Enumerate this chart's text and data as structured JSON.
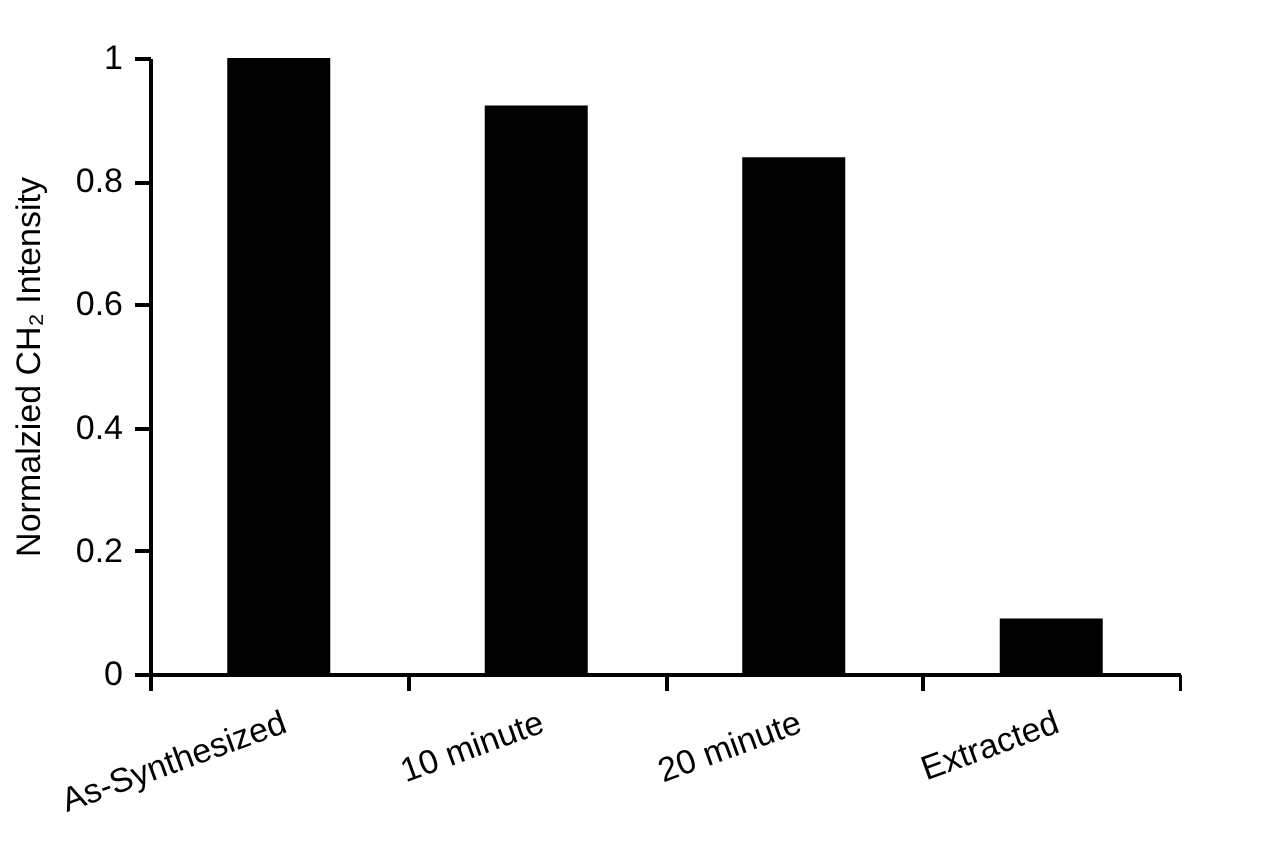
{
  "chart_data": {
    "type": "bar",
    "ylabel": "Normalzied CH₂ Intensity",
    "categories": [
      "As-Synthesized",
      "10 minute",
      "20 minute",
      "Extracted"
    ],
    "values": [
      1,
      0.923,
      0.839,
      0.09
    ],
    "color": "#000000",
    "ylim": [
      0,
      1
    ],
    "yticks": [
      0,
      0.2,
      0.4,
      0.6,
      0.8,
      1
    ],
    "grid": false
  }
}
